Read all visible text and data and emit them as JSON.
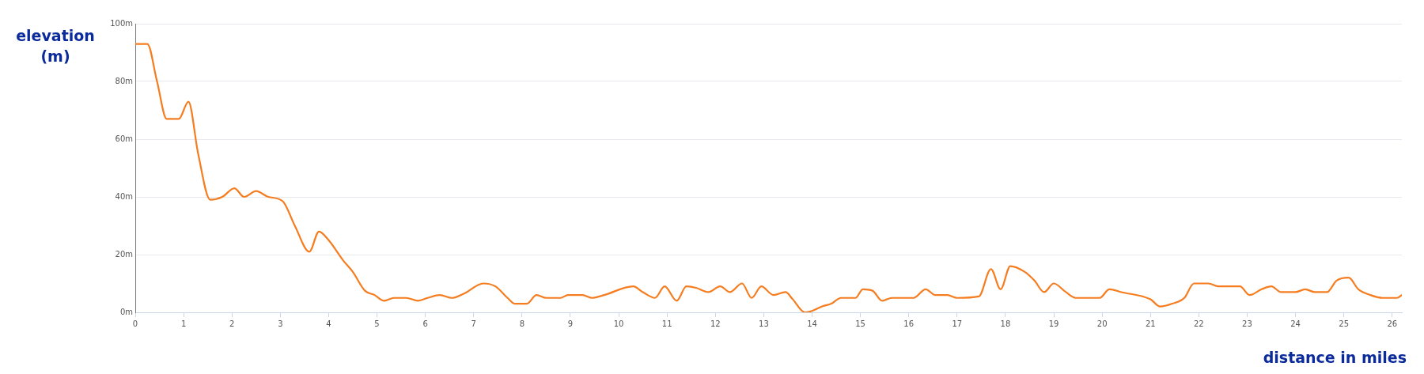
{
  "chart_data": {
    "type": "line",
    "xlabel": "distance in miles",
    "ylabel": "elevation (m)",
    "xlim": [
      0,
      26.2
    ],
    "xticks": [
      0,
      1,
      2,
      3,
      4,
      5,
      6,
      7,
      8,
      9,
      10,
      11,
      12,
      13,
      14,
      15,
      16,
      17,
      18,
      19,
      20,
      21,
      22,
      23,
      24,
      25,
      26
    ],
    "ylim": [
      0,
      100
    ],
    "yticks": [
      {
        "value": 0,
        "label": "0m"
      },
      {
        "value": 20,
        "label": "20m"
      },
      {
        "value": 40,
        "label": "40m"
      },
      {
        "value": 60,
        "label": "60m"
      },
      {
        "value": 80,
        "label": "80m"
      },
      {
        "value": 100,
        "label": "100m"
      }
    ],
    "grid": "y",
    "legend": false,
    "marker": "none",
    "line_style": "solid",
    "series": [
      {
        "color": "#f57c1f",
        "x": [
          0,
          0.25,
          0.45,
          0.65,
          0.9,
          1.1,
          1.3,
          1.55,
          1.8,
          2.05,
          2.25,
          2.5,
          2.75,
          3.05,
          3.3,
          3.6,
          3.8,
          4.0,
          4.3,
          4.5,
          4.75,
          4.95,
          5.15,
          5.35,
          5.6,
          5.85,
          6.05,
          6.3,
          6.55,
          6.8,
          7.2,
          7.45,
          7.7,
          7.85,
          8.1,
          8.3,
          8.5,
          8.8,
          8.95,
          9.25,
          9.45,
          9.7,
          10.3,
          10.5,
          10.75,
          10.95,
          11.2,
          11.4,
          11.6,
          11.85,
          12.1,
          12.3,
          12.55,
          12.75,
          12.95,
          13.2,
          13.45,
          13.6,
          13.85,
          14.0,
          14.2,
          14.4,
          14.6,
          14.9,
          15.05,
          15.25,
          15.45,
          15.65,
          16.1,
          16.35,
          16.55,
          16.8,
          17.0,
          17.45,
          17.7,
          17.9,
          18.1,
          18.4,
          18.6,
          18.8,
          19.0,
          19.25,
          19.45,
          19.95,
          20.15,
          20.4,
          21.0,
          21.2,
          21.45,
          21.7,
          21.9,
          22.2,
          22.4,
          22.85,
          23.05,
          23.3,
          23.5,
          23.7,
          24.0,
          24.2,
          24.4,
          24.65,
          24.85,
          25.1,
          25.3,
          25.55,
          25.8,
          26.1,
          26.2
        ],
        "values": [
          93,
          93,
          80,
          67,
          67,
          73,
          55,
          39,
          40,
          43,
          40,
          42,
          40,
          38.5,
          30,
          21,
          28,
          25,
          18,
          14,
          7.5,
          6,
          4,
          5,
          5,
          4,
          5,
          6,
          5,
          6.5,
          10,
          9,
          5,
          3,
          3,
          6,
          5,
          5,
          6,
          6,
          5,
          6,
          9,
          7,
          5,
          9,
          4,
          9,
          8.5,
          7,
          9,
          7,
          10,
          5,
          9,
          6,
          7,
          4.5,
          0,
          0.5,
          2,
          3,
          5,
          5,
          8,
          7.5,
          4,
          5,
          5,
          8,
          6,
          6,
          5,
          5.5,
          15,
          8,
          16,
          14,
          11,
          7,
          10,
          7,
          5,
          5,
          8,
          7,
          4.5,
          2,
          3,
          5,
          10,
          10,
          9,
          9,
          6,
          8,
          9,
          7,
          7,
          8,
          7,
          7,
          11,
          12,
          8,
          6,
          5,
          5,
          6
        ]
      }
    ]
  }
}
